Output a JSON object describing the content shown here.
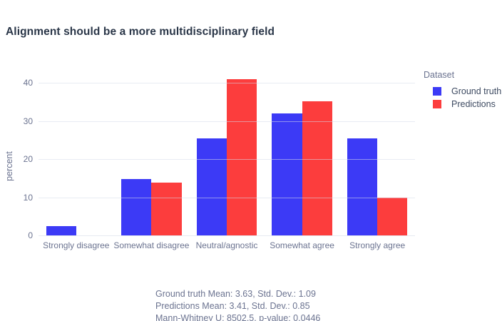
{
  "title": "Alignment should be a more multidisciplinary field",
  "chart_data": {
    "type": "bar",
    "categories": [
      "Strongly disagree",
      "Somewhat disagree",
      "Neutral/agnostic",
      "Somewhat agree",
      "Strongly agree"
    ],
    "series": [
      {
        "name": "Ground truth",
        "color": "#3c3af6",
        "values": [
          2.5,
          14.8,
          25.4,
          32.0,
          25.4
        ]
      },
      {
        "name": "Predictions",
        "color": "#fc3d3d",
        "values": [
          0,
          13.9,
          41.0,
          35.2,
          9.9
        ]
      }
    ],
    "xlabel": "",
    "ylabel": "percent",
    "yticks": [
      0,
      10,
      20,
      30,
      40
    ],
    "ylim": [
      0,
      44
    ],
    "grid": true,
    "legend_title": "Dataset",
    "legend_position": "top-right"
  },
  "annotation": {
    "lines": [
      "Ground truth Mean: 3.63, Std. Dev.: 1.09",
      "Predictions Mean: 3.41, Std. Dev.: 0.85",
      "Mann-Whitney U: 8502.5, p-value: 0.0446"
    ]
  },
  "colors": {
    "background": "#ffffff",
    "title_text": "#2a3648",
    "axis_text": "#6b7390",
    "legend_label_text": "#3d4a61",
    "gridline": "#e7eaf1",
    "ground_truth": "#3c3af6",
    "predictions": "#fc3d3d"
  }
}
